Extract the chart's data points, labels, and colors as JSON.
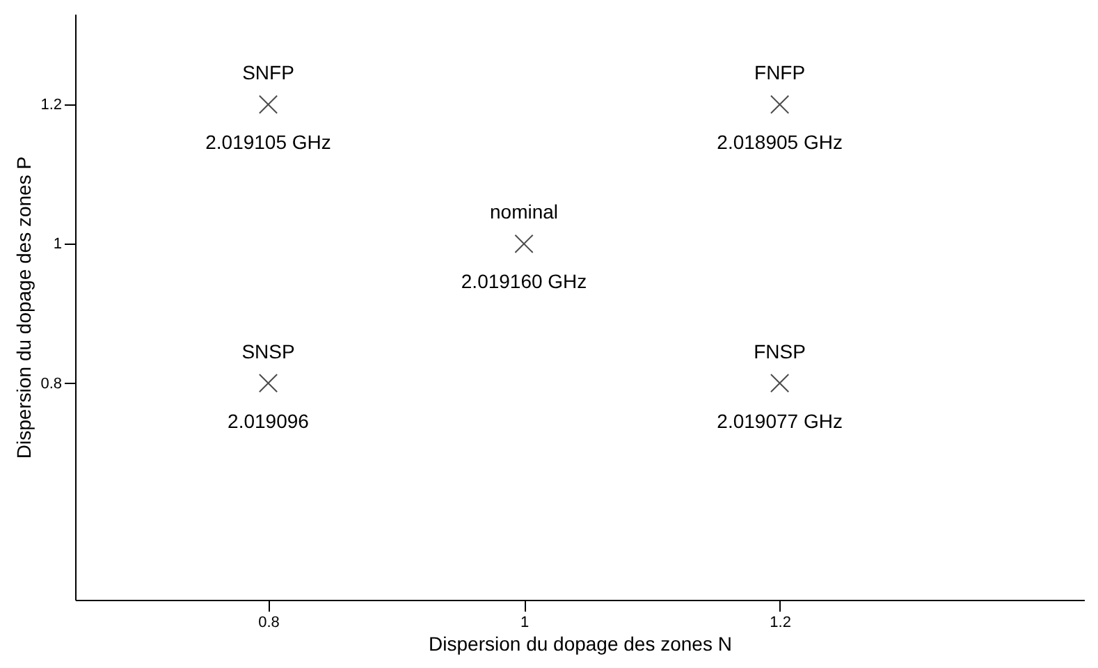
{
  "chart_data": {
    "type": "scatter",
    "xlabel": "Dispersion du dopage des zones N",
    "ylabel": "Dispersion du dopage des zones P",
    "x": [
      0.8,
      0.8,
      1,
      1.2,
      1.2
    ],
    "series": [
      {
        "color": "#000000",
        "values": [
          1.2,
          0.8,
          1,
          1.2,
          0.8
        ]
      }
    ],
    "xlim": [
      0.649,
      1.438
    ],
    "ylim": [
      0.489,
      1.33
    ],
    "xticks": [
      0.8,
      1,
      1.2
    ],
    "yticks": [
      0.8,
      1,
      1.2
    ],
    "marker": "cross",
    "grid": false,
    "annotations": [
      {
        "text": "SNFP",
        "x": 0.8,
        "y": 1.2
      },
      {
        "text": "2.019105 GHz",
        "x": 0.8,
        "y": 1.2
      },
      {
        "text": "SNSP",
        "x": 0.8,
        "y": 0.8
      },
      {
        "text": "2.019096",
        "x": 0.8,
        "y": 0.8
      },
      {
        "text": "nominal",
        "x": 1,
        "y": 1
      },
      {
        "text": "2.019160 GHz",
        "x": 1,
        "y": 1
      },
      {
        "text": "FNFP",
        "x": 1.2,
        "y": 1.2
      },
      {
        "text": "2.018905 GHz",
        "x": 1.2,
        "y": 1.2
      },
      {
        "text": "FNSP",
        "x": 1.2,
        "y": 0.8
      },
      {
        "text": "2.019077 GHz",
        "x": 1.2,
        "y": 0.8
      }
    ]
  }
}
